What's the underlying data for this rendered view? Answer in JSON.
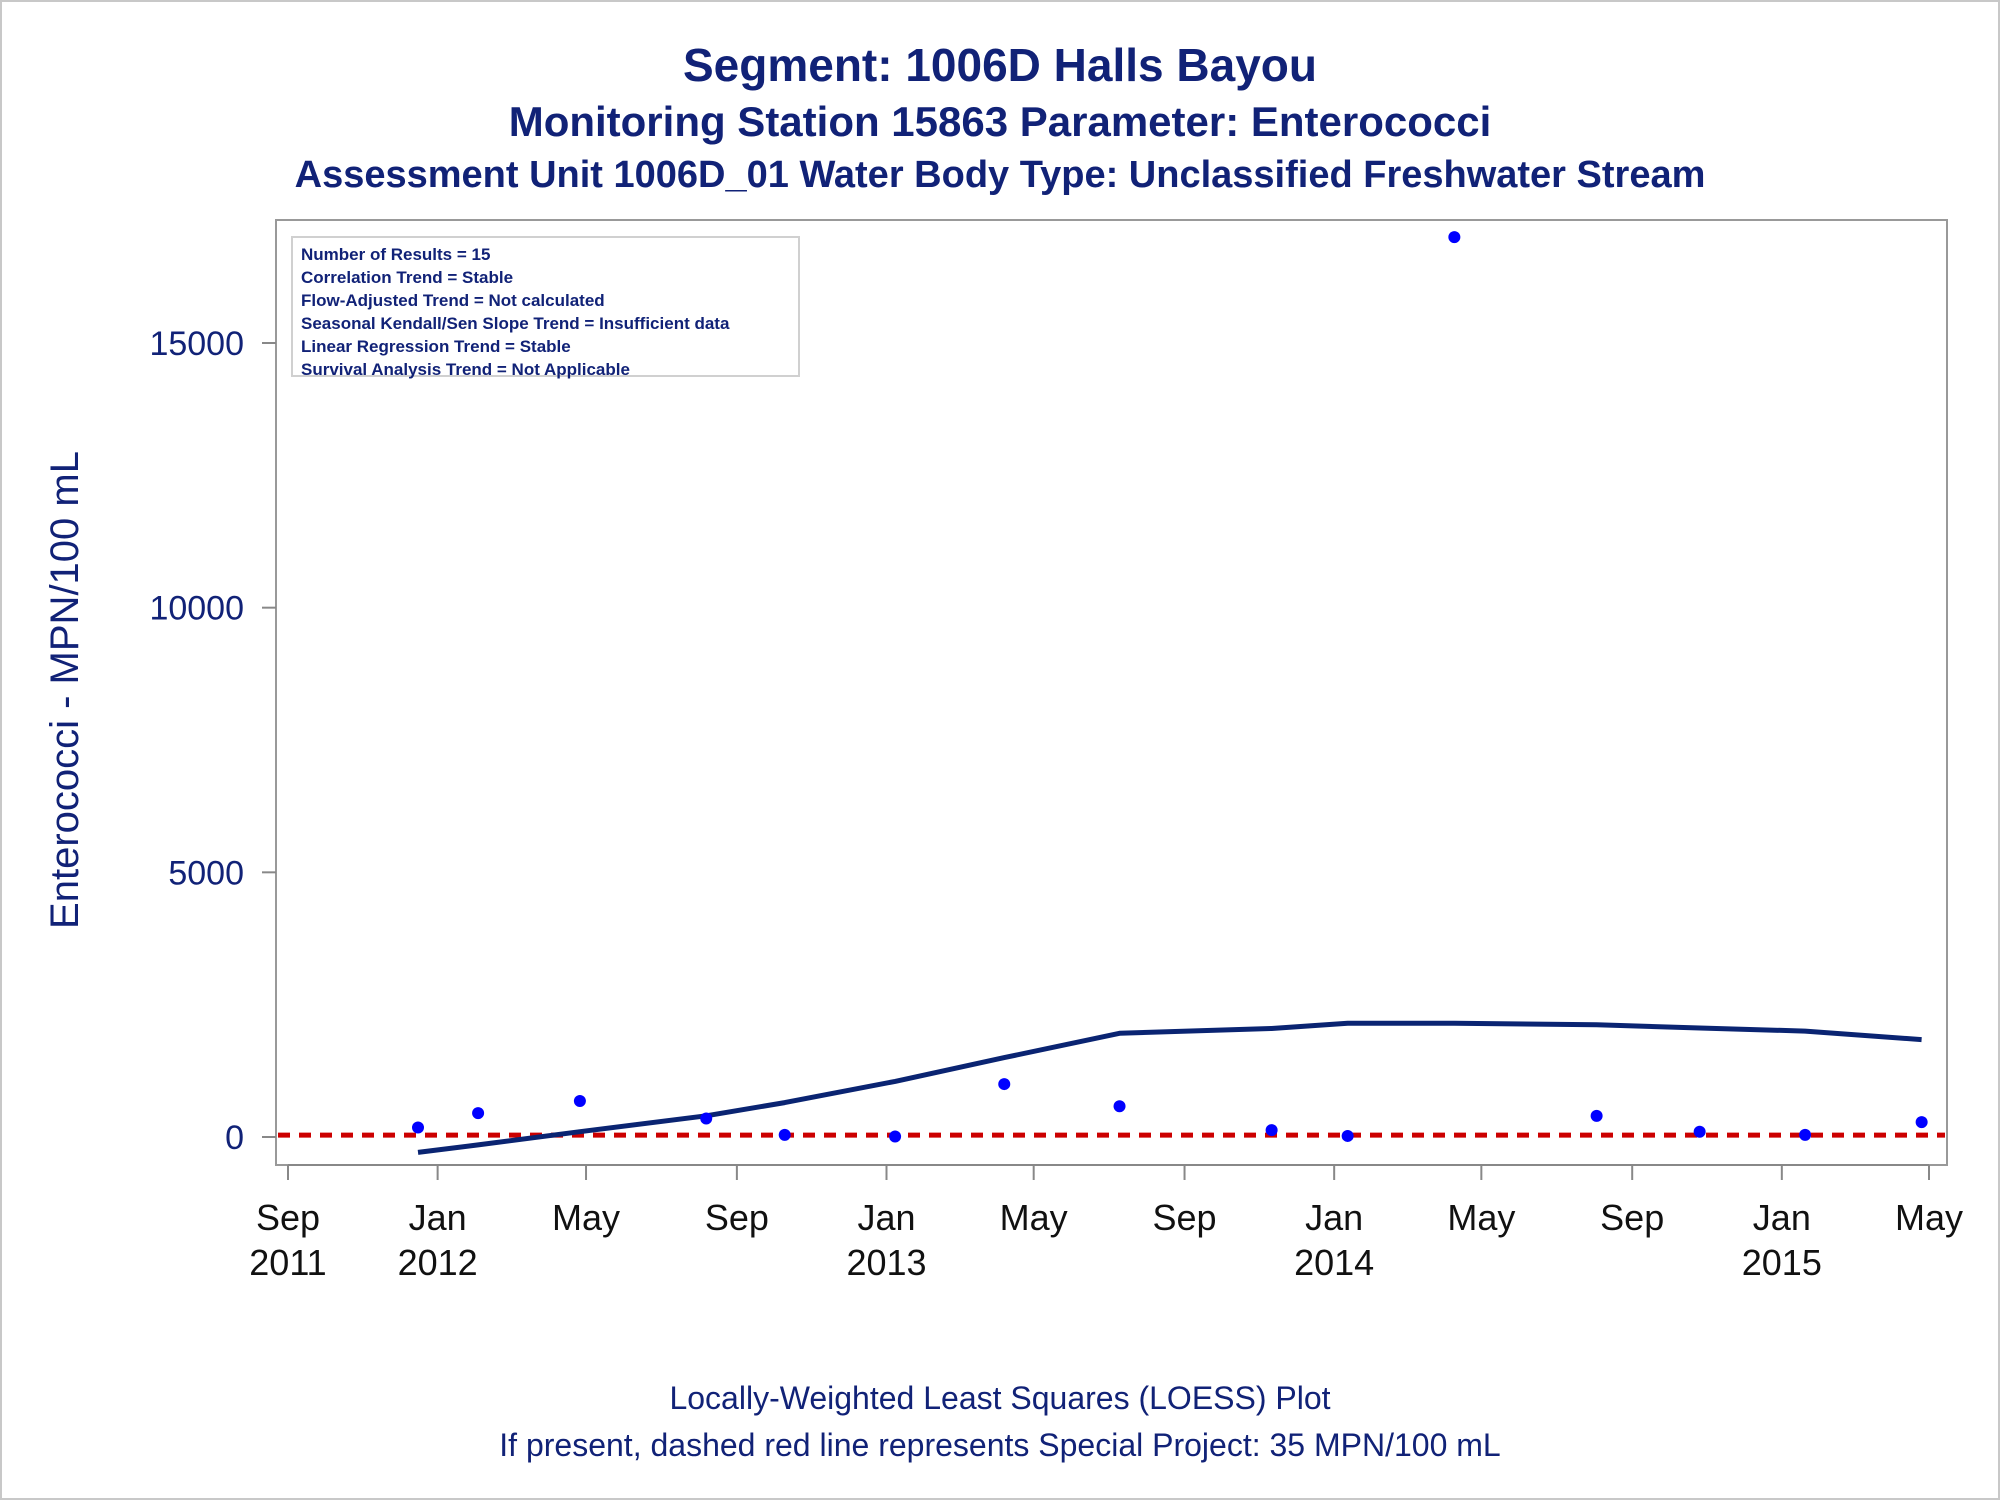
{
  "titles": {
    "line1": "Segment: 1006D  Halls Bayou",
    "line2": "Monitoring Station 15863 Parameter: Enterococci",
    "line3": "Assessment Unit 1006D_01   Water Body Type: Unclassified Freshwater Stream"
  },
  "stats_box": [
    "Number of Results = 15",
    "Correlation Trend = Stable",
    "Flow-Adjusted Trend = Not calculated",
    "Seasonal Kendall/Sen Slope Trend = Insufficient data",
    "Linear Regression Trend = Stable",
    "Survival Analysis Trend = Not Applicable"
  ],
  "footnotes": {
    "line1": "Locally-Weighted Least Squares (LOESS) Plot",
    "line2": "If present, dashed red line represents Special Project: 35 MPN/100 mL"
  },
  "colors": {
    "title": "#112277",
    "points": "#0000ff",
    "loess": "#0a2472",
    "reference": "#cc0000",
    "axis": "#888888"
  },
  "chart_data": {
    "type": "scatter",
    "ylabel": "Enterococci - MPN/100 mL",
    "xlim": [
      "2011-09-01",
      "2015-05-01"
    ],
    "ylim": [
      -500,
      17000
    ],
    "yticks": [
      0,
      5000,
      10000,
      15000
    ],
    "xticks": [
      {
        "date": "2011-09-01",
        "month": "Sep",
        "year": "2011"
      },
      {
        "date": "2012-01-01",
        "month": "Jan",
        "year": "2012"
      },
      {
        "date": "2012-05-01",
        "month": "May",
        "year": ""
      },
      {
        "date": "2012-09-01",
        "month": "Sep",
        "year": ""
      },
      {
        "date": "2013-01-01",
        "month": "Jan",
        "year": "2013"
      },
      {
        "date": "2013-05-01",
        "month": "May",
        "year": ""
      },
      {
        "date": "2013-09-01",
        "month": "Sep",
        "year": ""
      },
      {
        "date": "2014-01-01",
        "month": "Jan",
        "year": "2014"
      },
      {
        "date": "2014-05-01",
        "month": "May",
        "year": ""
      },
      {
        "date": "2014-09-01",
        "month": "Sep",
        "year": ""
      },
      {
        "date": "2015-01-01",
        "month": "Jan",
        "year": "2015"
      },
      {
        "date": "2015-05-01",
        "month": "May",
        "year": ""
      }
    ],
    "points": [
      {
        "x": "2011-12-16",
        "y": 180
      },
      {
        "x": "2012-02-03",
        "y": 450
      },
      {
        "x": "2012-04-26",
        "y": 680
      },
      {
        "x": "2012-08-07",
        "y": 350
      },
      {
        "x": "2012-10-10",
        "y": 40
      },
      {
        "x": "2013-01-08",
        "y": 10
      },
      {
        "x": "2013-04-07",
        "y": 1000
      },
      {
        "x": "2013-07-10",
        "y": 580
      },
      {
        "x": "2013-11-11",
        "y": 130
      },
      {
        "x": "2014-01-12",
        "y": 20
      },
      {
        "x": "2014-04-09",
        "y": 17000
      },
      {
        "x": "2014-08-03",
        "y": 400
      },
      {
        "x": "2014-10-26",
        "y": 100
      },
      {
        "x": "2015-01-20",
        "y": 40
      },
      {
        "x": "2015-04-25",
        "y": 280
      }
    ],
    "loess": [
      {
        "x": "2011-12-16",
        "y": -290
      },
      {
        "x": "2012-02-03",
        "y": -150
      },
      {
        "x": "2012-04-26",
        "y": 100
      },
      {
        "x": "2012-08-07",
        "y": 400
      },
      {
        "x": "2012-10-10",
        "y": 650
      },
      {
        "x": "2013-01-08",
        "y": 1050
      },
      {
        "x": "2013-04-07",
        "y": 1500
      },
      {
        "x": "2013-07-10",
        "y": 1960
      },
      {
        "x": "2013-11-11",
        "y": 2050
      },
      {
        "x": "2014-01-12",
        "y": 2150
      },
      {
        "x": "2014-04-09",
        "y": 2150
      },
      {
        "x": "2014-08-03",
        "y": 2120
      },
      {
        "x": "2014-10-26",
        "y": 2060
      },
      {
        "x": "2015-01-20",
        "y": 2000
      },
      {
        "x": "2015-04-25",
        "y": 1840
      }
    ],
    "reference_line": {
      "y": 35
    }
  }
}
